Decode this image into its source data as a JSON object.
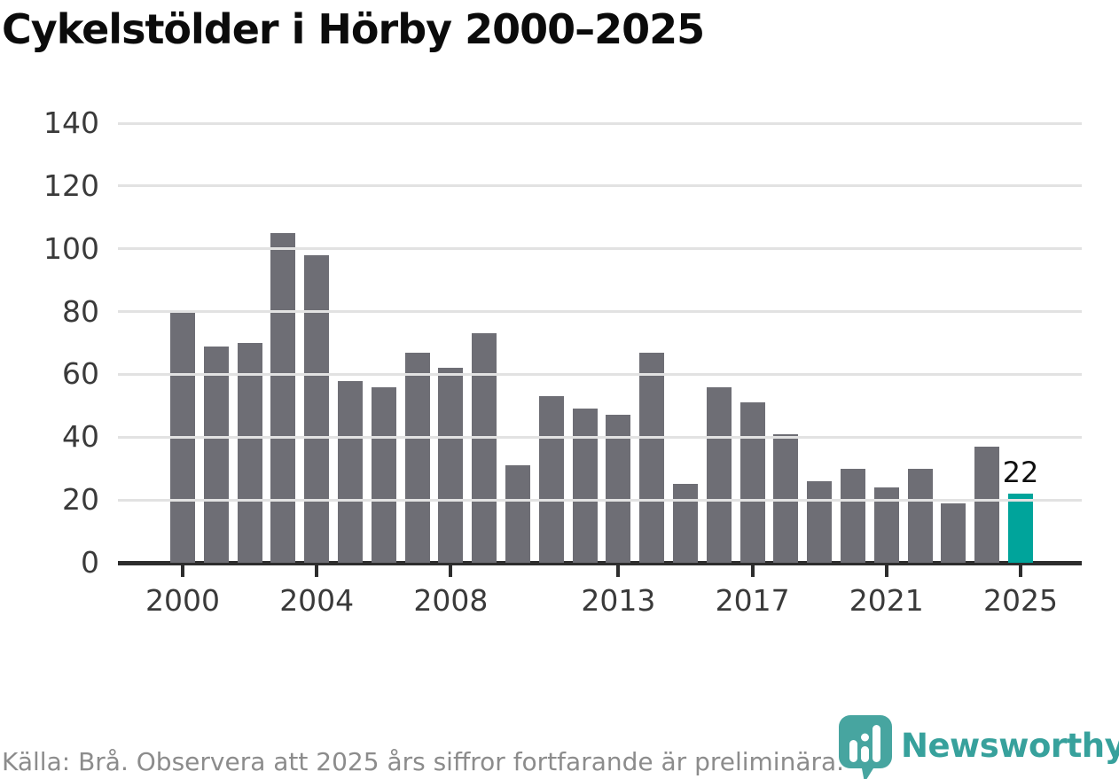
{
  "chart_data": {
    "type": "bar",
    "title": "Cykelstölder i Hörby 2000–2025",
    "categories": [
      2000,
      2001,
      2002,
      2003,
      2004,
      2005,
      2006,
      2007,
      2008,
      2009,
      2010,
      2011,
      2012,
      2013,
      2014,
      2015,
      2016,
      2017,
      2018,
      2019,
      2020,
      2021,
      2022,
      2023,
      2024,
      2025
    ],
    "values": [
      80,
      69,
      70,
      105,
      98,
      58,
      56,
      67,
      62,
      73,
      31,
      53,
      49,
      47,
      67,
      25,
      56,
      51,
      41,
      26,
      30,
      24,
      30,
      19,
      37,
      22
    ],
    "highlight": {
      "year": 2025,
      "value": 22,
      "label": "22"
    },
    "ylim": [
      0,
      140
    ],
    "yticks": [
      0,
      20,
      40,
      60,
      80,
      100,
      120,
      140
    ],
    "xticks": [
      2000,
      2004,
      2008,
      2013,
      2017,
      2021,
      2025
    ],
    "grid": "horizontal-only",
    "legend_position": "none",
    "colors": {
      "bar": "#6e6e75",
      "highlight_bar": "#00a49b",
      "gridline": "#e2e2e2",
      "axis": "#2d2d2d",
      "tick_label": "#3a3a3a",
      "value_label": "#101010"
    }
  },
  "footer": {
    "source_text": "Källa: Brå. Observera att 2025 års siffror fortfarande är preliminära."
  },
  "branding": {
    "wordmark": "Newsworthy",
    "icon": "newsworthy-speech-bubble-bar-chart-icon",
    "icon_color": "#47a5a0",
    "icon_glyph_color": "#ffffff",
    "wordmark_color": "#37a19c"
  }
}
